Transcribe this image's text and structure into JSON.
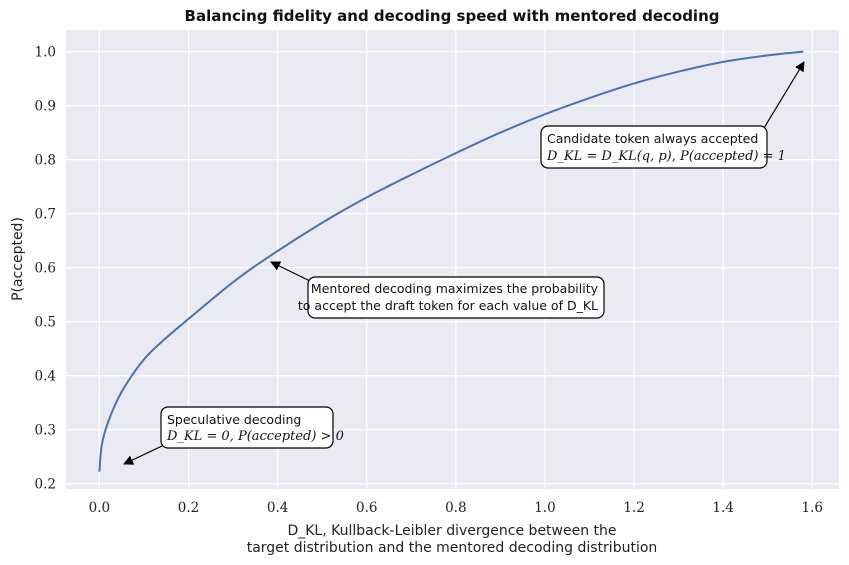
{
  "chart_data": {
    "type": "line",
    "title": "Balancing fidelity and decoding speed with mentored decoding",
    "xlabel_line1": "D_KL, Kullback-Leibler divergence between the",
    "xlabel_line2": "target distribution and the mentored decoding distribution",
    "ylabel": "P(accepted)",
    "xlim": [
      -0.075,
      1.66
    ],
    "ylim": [
      0.19,
      1.04
    ],
    "xticks": [
      0.0,
      0.2,
      0.4,
      0.6,
      0.8,
      1.0,
      1.2,
      1.4,
      1.6
    ],
    "xtick_labels": [
      "0.0",
      "0.2",
      "0.4",
      "0.6",
      "0.8",
      "1.0",
      "1.2",
      "1.4",
      "1.6"
    ],
    "yticks": [
      0.2,
      0.3,
      0.4,
      0.5,
      0.6,
      0.7,
      0.8,
      0.9,
      1.0
    ],
    "ytick_labels": [
      "0.2",
      "0.3",
      "0.4",
      "0.5",
      "0.6",
      "0.7",
      "0.8",
      "0.9",
      "1.0"
    ],
    "grid": true,
    "series": [
      {
        "color": "#4c72b0",
        "x": [
          0.0,
          0.005,
          0.02,
          0.05,
          0.1,
          0.15,
          0.2,
          0.3,
          0.38,
          0.5,
          0.6,
          0.7,
          0.8,
          0.9,
          1.0,
          1.1,
          1.2,
          1.3,
          1.4,
          1.5,
          1.58
        ],
        "y": [
          0.222,
          0.27,
          0.315,
          0.37,
          0.43,
          0.47,
          0.505,
          0.573,
          0.62,
          0.683,
          0.73,
          0.772,
          0.812,
          0.85,
          0.884,
          0.914,
          0.941,
          0.963,
          0.981,
          0.993,
          1.0
        ]
      }
    ],
    "annotations": [
      {
        "text_line1": "Speculative decoding",
        "text_line2": "D_KL = 0, P(accepted) > 0",
        "arrow_to": [
          0.055,
          0.232
        ]
      },
      {
        "text_line1": "Mentored decoding maximizes the probability",
        "text_line2": "to accept the draft token for each value of D_KL",
        "arrow_to": [
          0.38,
          0.61
        ]
      },
      {
        "text_line1": "Candidate token always accepted",
        "text_line2": "D_KL = D_KL(q, p), P(accepted) = 1",
        "arrow_to": [
          1.58,
          0.985
        ]
      }
    ],
    "colors": {
      "plot_background": "#eaeaf2",
      "grid": "#ffffff",
      "line": "#4c72b0"
    }
  }
}
